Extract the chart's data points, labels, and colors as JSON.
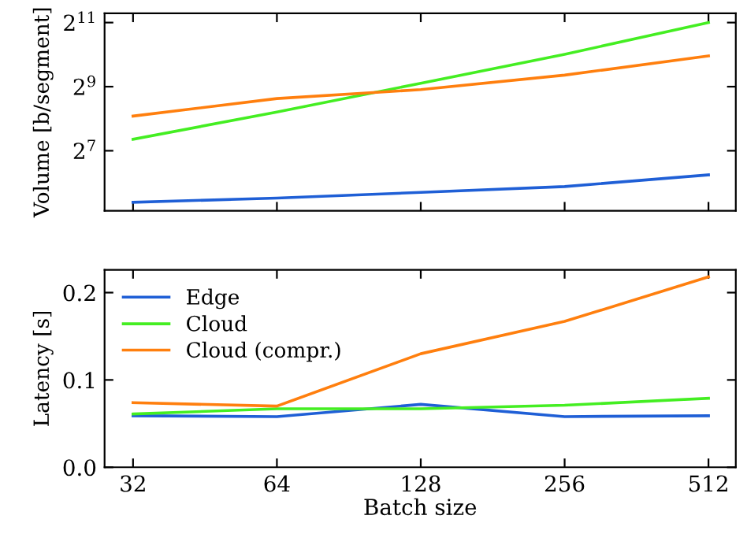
{
  "chart_data": [
    {
      "type": "line",
      "ylabel": "Volume [b/segment]",
      "x": [
        32,
        64,
        128,
        256,
        512
      ],
      "log": "xy",
      "tick_labels": "y",
      "grid": false,
      "legend": false,
      "series": [
        {
          "color": "#1f5fd6",
          "values": [
            42,
            46,
            52,
            59,
            76
          ]
        },
        {
          "color": "#44ee22",
          "values": [
            164,
            296,
            551,
            1030,
            2048
          ]
        },
        {
          "color": "#ff7f0e",
          "values": [
            271,
            396,
            481,
            657,
            996
          ]
        }
      ],
      "xlim": [
        27.9,
        584
      ],
      "xticks": [
        32,
        64,
        128,
        256,
        512
      ],
      "ylim": [
        35,
        2500
      ],
      "yticks": [
        {
          "value": 128,
          "label": "2$^{7}$"
        },
        {
          "value": 512,
          "label": "2$^{9}$"
        },
        {
          "value": 2048,
          "label": "2$^{11}$"
        }
      ]
    },
    {
      "type": "line",
      "xlabel": "Batch size",
      "ylabel": "Latency [s]",
      "x": [
        32,
        64,
        128,
        256,
        512
      ],
      "log": "x",
      "grid": false,
      "legend": "top left",
      "series": [
        {
          "name": "Edge",
          "color": "#1f5fd6",
          "values": [
            0.059,
            0.058,
            0.072,
            0.058,
            0.059
          ]
        },
        {
          "name": "Cloud",
          "color": "#44ee22",
          "values": [
            0.061,
            0.067,
            0.067,
            0.071,
            0.079
          ]
        },
        {
          "name": "Cloud (compr.)",
          "color": "#ff7f0e",
          "values": [
            0.074,
            0.07,
            0.13,
            0.167,
            0.218
          ]
        }
      ],
      "xlim": [
        27.9,
        584
      ],
      "xticks": [
        32,
        64,
        128,
        256,
        512
      ],
      "ylim": [
        0,
        0.226
      ],
      "yticks": [
        {
          "value": 0,
          "label": "0.0"
        },
        0.1,
        0.2
      ]
    }
  ]
}
